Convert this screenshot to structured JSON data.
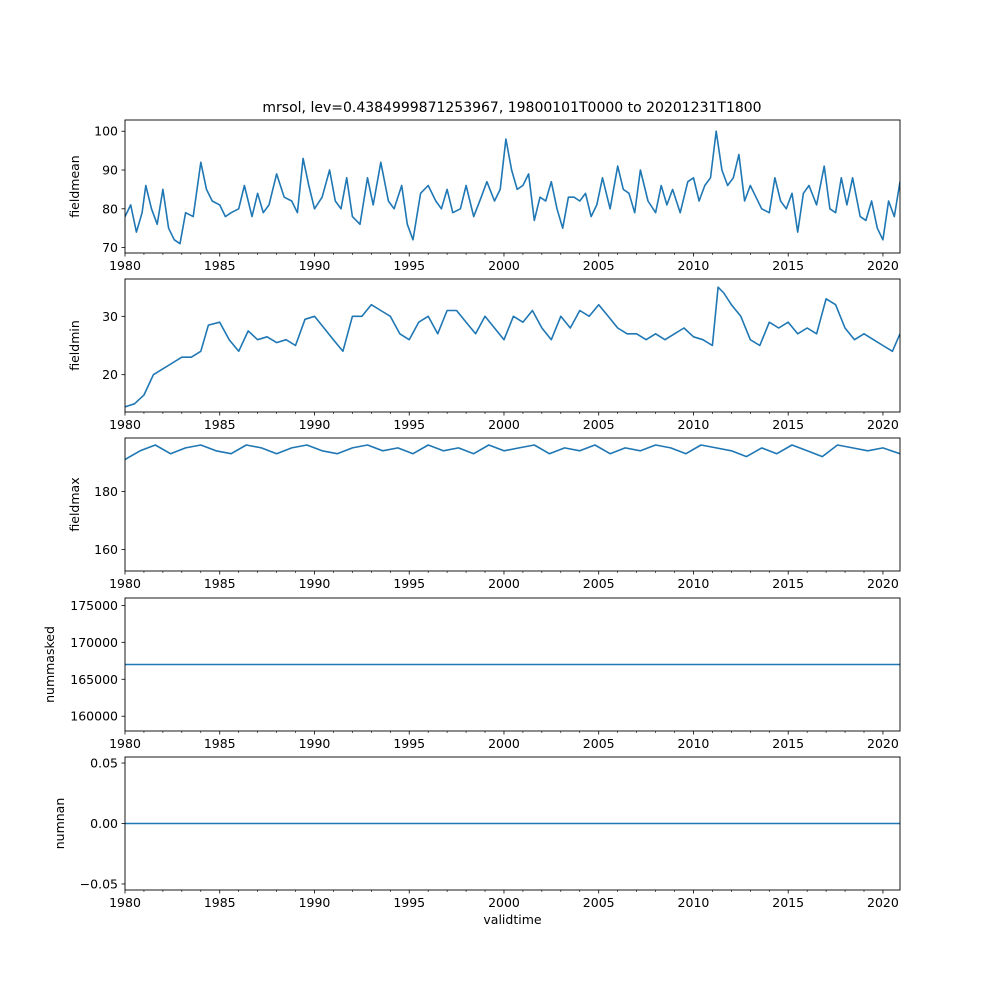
{
  "figure": {
    "title": "mrsol, lev=0.4384999871253967, 19800101T0000 to 20201231T1800"
  },
  "colors": {
    "line": "#1f77b4",
    "axes": "#000000",
    "background": "#ffffff"
  },
  "chart_data": [
    {
      "type": "line",
      "ylabel": "fieldmean",
      "xlabel": "",
      "xlim": [
        1980,
        2020.9
      ],
      "xticks": [
        1980,
        1985,
        1990,
        1995,
        2000,
        2005,
        2010,
        2015,
        2020
      ],
      "ylim": [
        68.6,
        102.9
      ],
      "yticks": [
        70,
        80,
        90,
        100
      ],
      "series": [
        {
          "name": "fieldmean",
          "x": [
            1980.0,
            1980.3,
            1980.6,
            1980.9,
            1981.1,
            1981.4,
            1981.7,
            1982.0,
            1982.3,
            1982.6,
            1982.9,
            1983.2,
            1983.6,
            1984.0,
            1984.3,
            1984.6,
            1985.0,
            1985.3,
            1985.6,
            1986.0,
            1986.3,
            1986.7,
            1987.0,
            1987.3,
            1987.6,
            1988.0,
            1988.4,
            1988.8,
            1989.1,
            1989.4,
            1989.7,
            1990.0,
            1990.4,
            1990.8,
            1991.1,
            1991.4,
            1991.7,
            1992.0,
            1992.4,
            1992.8,
            1993.1,
            1993.5,
            1993.9,
            1994.2,
            1994.6,
            1994.9,
            1995.2,
            1995.6,
            1996.0,
            1996.4,
            1996.7,
            1997.0,
            1997.3,
            1997.7,
            1998.0,
            1998.4,
            1998.8,
            1999.1,
            1999.5,
            1999.8,
            2000.1,
            2000.4,
            2000.7,
            2001.0,
            2001.3,
            2001.6,
            2001.9,
            2002.2,
            2002.5,
            2002.8,
            2003.1,
            2003.4,
            2003.7,
            2004.0,
            2004.3,
            2004.6,
            2004.9,
            2005.2,
            2005.6,
            2006.0,
            2006.3,
            2006.6,
            2006.9,
            2007.2,
            2007.6,
            2008.0,
            2008.3,
            2008.6,
            2008.9,
            2009.3,
            2009.7,
            2010.0,
            2010.3,
            2010.6,
            2010.9,
            2011.2,
            2011.5,
            2011.8,
            2012.1,
            2012.4,
            2012.7,
            2013.0,
            2013.3,
            2013.6,
            2014.0,
            2014.3,
            2014.6,
            2014.9,
            2015.2,
            2015.5,
            2015.8,
            2016.1,
            2016.5,
            2016.9,
            2017.2,
            2017.5,
            2017.8,
            2018.1,
            2018.4,
            2018.8,
            2019.1,
            2019.4,
            2019.7,
            2020.0,
            2020.3,
            2020.6,
            2020.9
          ],
          "y": [
            78,
            81,
            74,
            79,
            86,
            80,
            76,
            85,
            75,
            72,
            71,
            79,
            78,
            92,
            85,
            82,
            81,
            78,
            79,
            80,
            86,
            78,
            84,
            79,
            81,
            89,
            83,
            82,
            79,
            93,
            86,
            80,
            83,
            90,
            82,
            80,
            88,
            78,
            76,
            88,
            81,
            92,
            82,
            80,
            86,
            76,
            72,
            84,
            86,
            82,
            80,
            85,
            79,
            80,
            86,
            78,
            83,
            87,
            82,
            85,
            98,
            90,
            85,
            86,
            89,
            77,
            83,
            82,
            87,
            80,
            75,
            83,
            83,
            82,
            84,
            78,
            81,
            88,
            80,
            91,
            85,
            84,
            79,
            90,
            82,
            79,
            86,
            81,
            85,
            79,
            87,
            88,
            82,
            86,
            88,
            100,
            90,
            86,
            88,
            94,
            82,
            86,
            83,
            80,
            79,
            88,
            82,
            80,
            84,
            74,
            84,
            86,
            81,
            91,
            80,
            79,
            88,
            81,
            88,
            78,
            77,
            82,
            75,
            72,
            82,
            78,
            87
          ]
        }
      ]
    },
    {
      "type": "line",
      "ylabel": "fieldmin",
      "xlabel": "",
      "xlim": [
        1980,
        2020.9
      ],
      "xticks": [
        1980,
        1985,
        1990,
        1995,
        2000,
        2005,
        2010,
        2015,
        2020
      ],
      "ylim": [
        13.6,
        36.4
      ],
      "yticks": [
        20,
        30
      ],
      "series": [
        {
          "name": "fieldmin",
          "x": [
            1980.0,
            1980.5,
            1981.0,
            1981.5,
            1982.0,
            1982.5,
            1983.0,
            1983.5,
            1984.0,
            1984.4,
            1985.0,
            1985.5,
            1986.0,
            1986.5,
            1987.0,
            1987.5,
            1988.0,
            1988.5,
            1989.0,
            1989.5,
            1990.0,
            1990.5,
            1991.0,
            1991.5,
            1992.0,
            1992.5,
            1993.0,
            1993.5,
            1994.0,
            1994.5,
            1995.0,
            1995.5,
            1996.0,
            1996.5,
            1997.0,
            1997.5,
            1998.0,
            1998.5,
            1999.0,
            1999.5,
            2000.0,
            2000.5,
            2001.0,
            2001.5,
            2002.0,
            2002.5,
            2003.0,
            2003.5,
            2004.0,
            2004.5,
            2005.0,
            2005.5,
            2006.0,
            2006.5,
            2007.0,
            2007.5,
            2008.0,
            2008.5,
            2009.0,
            2009.5,
            2010.0,
            2010.5,
            2011.0,
            2011.3,
            2011.6,
            2012.0,
            2012.5,
            2013.0,
            2013.5,
            2014.0,
            2014.5,
            2015.0,
            2015.5,
            2016.0,
            2016.5,
            2017.0,
            2017.5,
            2018.0,
            2018.5,
            2019.0,
            2019.5,
            2020.0,
            2020.5,
            2020.9
          ],
          "y": [
            14.5,
            15,
            16.5,
            20,
            21,
            22,
            23,
            23,
            24,
            28.5,
            29,
            26,
            24,
            27.5,
            26,
            26.5,
            25.5,
            26,
            25,
            29.5,
            30,
            28,
            26,
            24,
            30,
            30,
            32,
            31,
            30,
            27,
            26,
            29,
            30,
            27,
            31,
            31,
            29,
            27,
            30,
            28,
            26,
            30,
            29,
            31,
            28,
            26,
            30,
            28,
            31,
            30,
            32,
            30,
            28,
            27,
            27,
            26,
            27,
            26,
            27,
            28,
            26.5,
            26,
            25,
            35,
            34,
            32,
            30,
            26,
            25,
            29,
            28,
            29,
            27,
            28,
            27,
            33,
            32,
            28,
            26,
            27,
            26,
            25,
            24,
            27
          ]
        }
      ]
    },
    {
      "type": "line",
      "ylabel": "fieldmax",
      "xlabel": "",
      "xlim": [
        1980,
        2020.9
      ],
      "xticks": [
        1980,
        1985,
        1990,
        1995,
        2000,
        2005,
        2010,
        2015,
        2020
      ],
      "ylim": [
        152.6,
        198.4
      ],
      "yticks": [
        160,
        180
      ],
      "series": [
        {
          "name": "fieldmax",
          "x": [
            1980.0,
            1980.8,
            1981.6,
            1982.4,
            1983.2,
            1984.0,
            1984.8,
            1985.6,
            1986.4,
            1987.2,
            1988.0,
            1988.8,
            1989.6,
            1990.4,
            1991.2,
            1992.0,
            1992.8,
            1993.6,
            1994.4,
            1995.2,
            1996.0,
            1996.8,
            1997.6,
            1998.4,
            1999.2,
            2000.0,
            2000.8,
            2001.6,
            2002.4,
            2003.2,
            2004.0,
            2004.8,
            2005.6,
            2006.4,
            2007.2,
            2008.0,
            2008.8,
            2009.6,
            2010.4,
            2011.2,
            2012.0,
            2012.8,
            2013.6,
            2014.4,
            2015.2,
            2016.0,
            2016.8,
            2017.6,
            2018.4,
            2019.2,
            2020.0,
            2020.9
          ],
          "y": [
            191,
            194,
            196,
            193,
            195,
            196,
            194,
            193,
            196,
            195,
            193,
            195,
            196,
            194,
            193,
            195,
            196,
            194,
            195,
            193,
            196,
            194,
            195,
            193,
            196,
            194,
            195,
            196,
            193,
            195,
            194,
            196,
            193,
            195,
            194,
            196,
            195,
            193,
            196,
            195,
            194,
            192,
            195,
            193,
            196,
            194,
            192,
            196,
            195,
            194,
            195,
            193
          ]
        }
      ]
    },
    {
      "type": "line",
      "ylabel": "nummasked",
      "xlabel": "",
      "xlim": [
        1980,
        2020.9
      ],
      "xticks": [
        1980,
        1985,
        1990,
        1995,
        2000,
        2005,
        2010,
        2015,
        2020
      ],
      "ylim": [
        158000,
        176000
      ],
      "yticks": [
        160000,
        165000,
        170000,
        175000
      ],
      "series": [
        {
          "name": "nummasked",
          "x": [
            1980,
            2020.9
          ],
          "y": [
            167000,
            167000
          ]
        }
      ]
    },
    {
      "type": "line",
      "ylabel": "numnan",
      "xlabel": "validtime",
      "xlim": [
        1980,
        2020.9
      ],
      "xticks": [
        1980,
        1985,
        1990,
        1995,
        2000,
        2005,
        2010,
        2015,
        2020
      ],
      "ylim": [
        -0.055,
        0.055
      ],
      "yticks": [
        -0.05,
        0.0,
        0.05
      ],
      "ytick_labels": [
        "−0.05",
        "0.00",
        "0.05"
      ],
      "series": [
        {
          "name": "numnan",
          "x": [
            1980,
            2020.9
          ],
          "y": [
            0,
            0
          ]
        }
      ]
    }
  ]
}
